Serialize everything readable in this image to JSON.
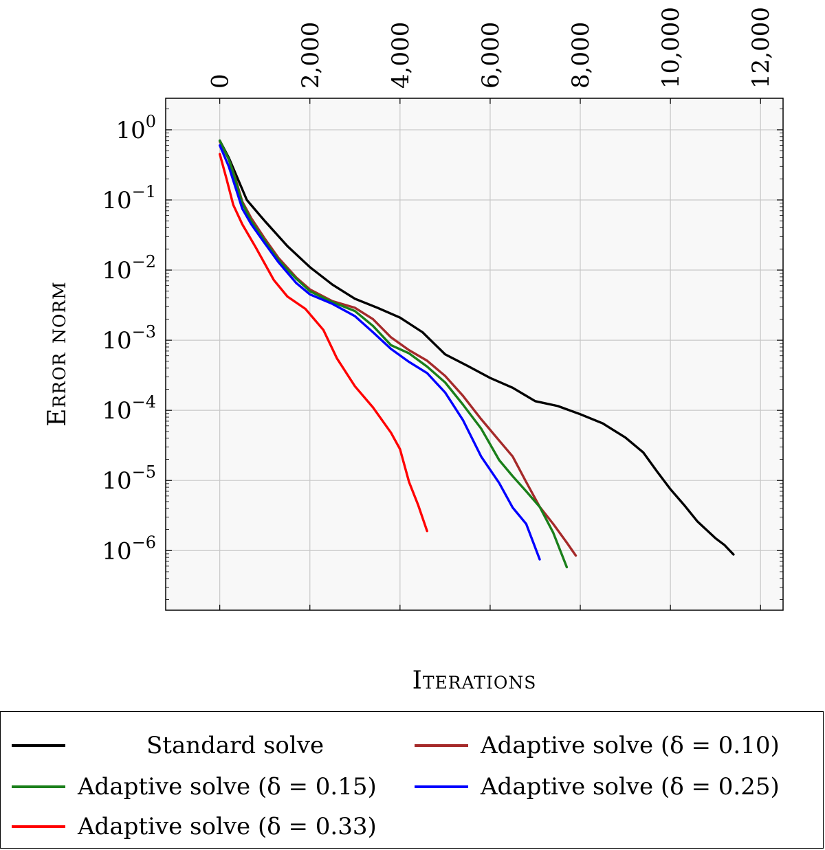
{
  "chart_data": {
    "type": "line",
    "xlabel": "Iterations",
    "ylabel": "Error norm",
    "xlim": [
      -1200,
      12500
    ],
    "ylim_log10": [
      -6.85,
      0.45
    ],
    "y_scale": "log",
    "grid": true,
    "x_axis_position": "top",
    "legend_position": "below",
    "x_ticks": [
      0,
      2000,
      4000,
      6000,
      8000,
      10000,
      12000
    ],
    "x_tick_labels": [
      "0",
      "2,000",
      "4,000",
      "6,000",
      "8,000",
      "10,000",
      "12,000"
    ],
    "y_ticks_exponent": [
      0,
      -1,
      -2,
      -3,
      -4,
      -5,
      -6
    ],
    "y_tick_labels": [
      {
        "base": "10",
        "exp": "0"
      },
      {
        "base": "10",
        "exp": "−1"
      },
      {
        "base": "10",
        "exp": "−2"
      },
      {
        "base": "10",
        "exp": "−3"
      },
      {
        "base": "10",
        "exp": "−4"
      },
      {
        "base": "10",
        "exp": "−5"
      },
      {
        "base": "10",
        "exp": "−6"
      }
    ],
    "series": [
      {
        "name": "Standard solve",
        "color": "#000000",
        "points": [
          [
            0,
            0.7
          ],
          [
            200,
            0.4
          ],
          [
            400,
            0.2
          ],
          [
            600,
            0.1
          ],
          [
            1000,
            0.05
          ],
          [
            1500,
            0.022
          ],
          [
            2000,
            0.011
          ],
          [
            2500,
            0.0062
          ],
          [
            3000,
            0.0039
          ],
          [
            3500,
            0.0029
          ],
          [
            4000,
            0.0021
          ],
          [
            4500,
            0.0013
          ],
          [
            5000,
            0.00063
          ],
          [
            5500,
            0.00043
          ],
          [
            6000,
            0.00029
          ],
          [
            6500,
            0.00021
          ],
          [
            7000,
            0.000135
          ],
          [
            7500,
            0.000115
          ],
          [
            8000,
            8.8e-05
          ],
          [
            8500,
            6.5e-05
          ],
          [
            9000,
            4.1e-05
          ],
          [
            9400,
            2.5e-05
          ],
          [
            9700,
            1.35e-05
          ],
          [
            10000,
            7.5e-06
          ],
          [
            10300,
            4.5e-06
          ],
          [
            10600,
            2.6e-06
          ],
          [
            11000,
            1.5e-06
          ],
          [
            11200,
            1.2e-06
          ],
          [
            11400,
            8.8e-07
          ]
        ]
      },
      {
        "name": "Adaptive solve (δ = 0.10)",
        "color": "#a52a2a",
        "points": [
          [
            0,
            0.68
          ],
          [
            200,
            0.38
          ],
          [
            350,
            0.2
          ],
          [
            500,
            0.095
          ],
          [
            700,
            0.055
          ],
          [
            1000,
            0.028
          ],
          [
            1300,
            0.015
          ],
          [
            1700,
            0.0078
          ],
          [
            2000,
            0.0053
          ],
          [
            2500,
            0.0036
          ],
          [
            3000,
            0.0029
          ],
          [
            3400,
            0.002
          ],
          [
            3800,
            0.0011
          ],
          [
            4200,
            0.00072
          ],
          [
            4600,
            0.00051
          ],
          [
            5000,
            0.00031
          ],
          [
            5400,
            0.00016
          ],
          [
            5800,
            7.5e-05
          ],
          [
            6200,
            3.7e-05
          ],
          [
            6500,
            2.2e-05
          ],
          [
            6800,
            9.5e-06
          ],
          [
            7100,
            4.2e-06
          ],
          [
            7400,
            2.4e-06
          ],
          [
            7700,
            1.3e-06
          ],
          [
            7900,
            8.5e-07
          ]
        ]
      },
      {
        "name": "Adaptive solve (δ = 0.15)",
        "color": "#1a7f1a",
        "points": [
          [
            0,
            0.7
          ],
          [
            200,
            0.38
          ],
          [
            350,
            0.19
          ],
          [
            500,
            0.09
          ],
          [
            700,
            0.05
          ],
          [
            1000,
            0.026
          ],
          [
            1300,
            0.014
          ],
          [
            1700,
            0.0075
          ],
          [
            2000,
            0.005
          ],
          [
            2500,
            0.0035
          ],
          [
            3000,
            0.0026
          ],
          [
            3400,
            0.0016
          ],
          [
            3800,
            0.00085
          ],
          [
            4200,
            0.00065
          ],
          [
            4600,
            0.00042
          ],
          [
            5000,
            0.00025
          ],
          [
            5400,
            0.00012
          ],
          [
            5800,
            5.5e-05
          ],
          [
            6200,
            1.95e-05
          ],
          [
            6500,
            1.15e-05
          ],
          [
            6800,
            7e-06
          ],
          [
            7100,
            4.2e-06
          ],
          [
            7400,
            1.8e-06
          ],
          [
            7600,
            8.5e-07
          ],
          [
            7700,
            5.8e-07
          ]
        ]
      },
      {
        "name": "Adaptive solve (δ = 0.25)",
        "color": "#0000ff",
        "points": [
          [
            0,
            0.6
          ],
          [
            200,
            0.3
          ],
          [
            350,
            0.15
          ],
          [
            500,
            0.075
          ],
          [
            700,
            0.045
          ],
          [
            1000,
            0.024
          ],
          [
            1300,
            0.013
          ],
          [
            1700,
            0.0065
          ],
          [
            2000,
            0.0045
          ],
          [
            2500,
            0.0033
          ],
          [
            3000,
            0.0022
          ],
          [
            3400,
            0.0013
          ],
          [
            3800,
            0.00075
          ],
          [
            4200,
            0.00049
          ],
          [
            4600,
            0.00034
          ],
          [
            5000,
            0.00018
          ],
          [
            5400,
            7.2e-05
          ],
          [
            5800,
            2.2e-05
          ],
          [
            6200,
            9.2e-06
          ],
          [
            6500,
            4.1e-06
          ],
          [
            6800,
            2.4e-06
          ],
          [
            7100,
            7.5e-07
          ]
        ]
      },
      {
        "name": "Adaptive solve (δ = 0.33)",
        "color": "#ff0000",
        "points": [
          [
            0,
            0.45
          ],
          [
            150,
            0.2
          ],
          [
            300,
            0.085
          ],
          [
            500,
            0.045
          ],
          [
            800,
            0.021
          ],
          [
            1200,
            0.0072
          ],
          [
            1500,
            0.0042
          ],
          [
            1900,
            0.0028
          ],
          [
            2300,
            0.0014
          ],
          [
            2600,
            0.00055
          ],
          [
            3000,
            0.00022
          ],
          [
            3400,
            0.00011
          ],
          [
            3800,
            4.8e-05
          ],
          [
            4000,
            2.8e-05
          ],
          [
            4200,
            9.5e-06
          ],
          [
            4400,
            4.5e-06
          ],
          [
            4600,
            1.9e-06
          ]
        ]
      }
    ]
  },
  "legend": {
    "items": [
      {
        "label": "Standard solve",
        "color": "#000000"
      },
      {
        "label": "Adaptive solve (δ = 0.10)",
        "color": "#a52a2a"
      },
      {
        "label": "Adaptive solve (δ = 0.15)",
        "color": "#1a7f1a"
      },
      {
        "label": "Adaptive solve (δ = 0.25)",
        "color": "#0000ff"
      },
      {
        "label": "Adaptive solve (δ = 0.33)",
        "color": "#ff0000"
      }
    ]
  }
}
